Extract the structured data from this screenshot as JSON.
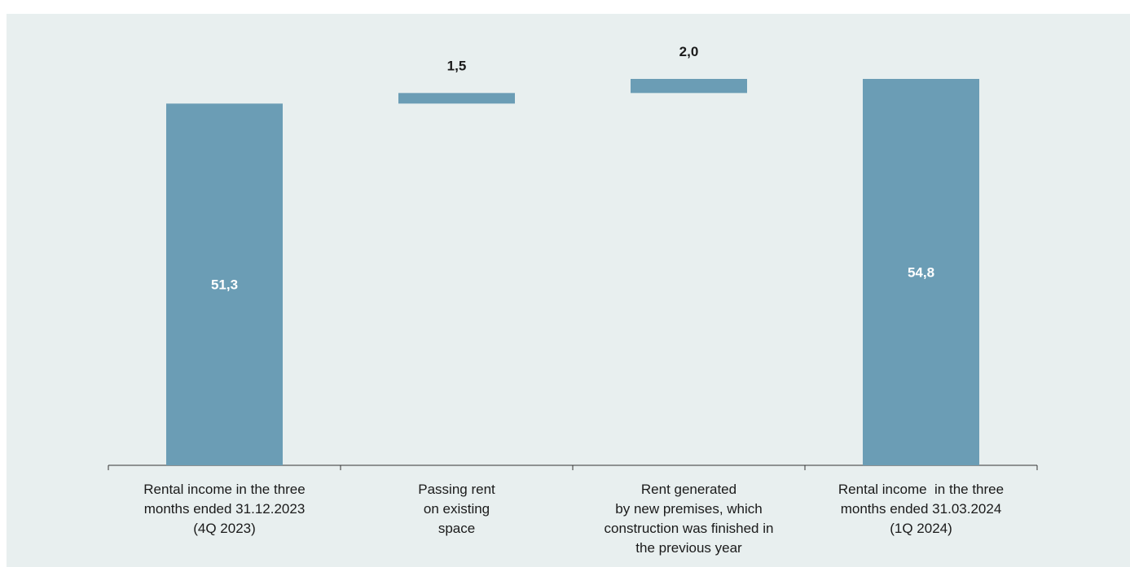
{
  "chart_data": {
    "type": "bar",
    "subtype": "waterfall",
    "categories": [
      [
        "Rental income in the three",
        "months ended 31.12.2023",
        "(4Q 2023)"
      ],
      [
        "Passing rent",
        "on existing",
        "space"
      ],
      [
        "Rent generated",
        "by new premises, which",
        "construction was finished in",
        "the previous year"
      ],
      [
        "Rental income  in the three",
        "months ended 31.03.2024",
        "(1Q 2024)"
      ]
    ],
    "values": [
      51.3,
      1.5,
      2.0,
      54.8
    ],
    "value_labels": [
      "51,3",
      "1,5",
      "2,0",
      "54,8"
    ],
    "kinds": [
      "total",
      "increase",
      "increase",
      "total"
    ],
    "title": "",
    "xlabel": "",
    "ylabel": "",
    "ylim": [
      0,
      54.8
    ],
    "grid": false,
    "legend": "none",
    "colors": {
      "bar": "#6b9db5",
      "background": "#e8efef",
      "axis": "#333333"
    }
  }
}
